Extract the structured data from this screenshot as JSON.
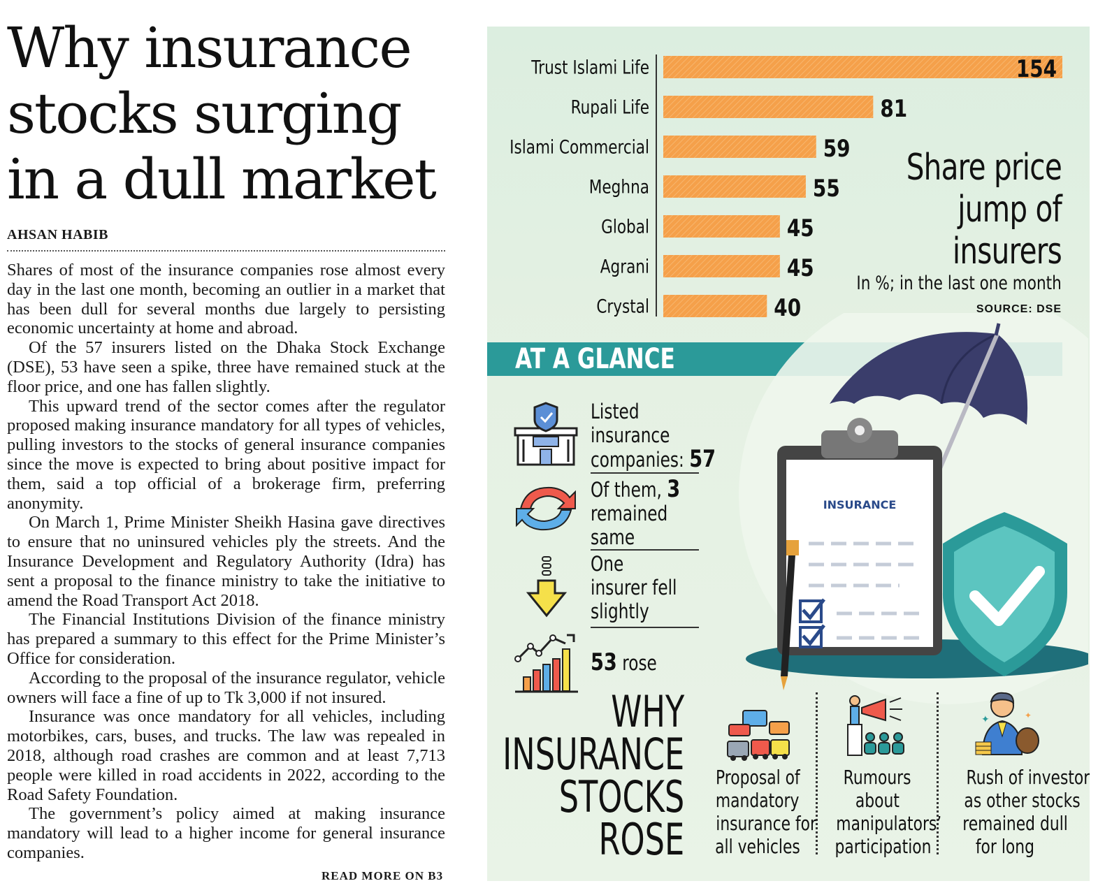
{
  "article": {
    "headline": "Why insurance stocks surging in a dull market",
    "byline": "AHSAN HABIB",
    "paragraphs": [
      "Shares of most of the insurance companies rose almost every day in the last one month, becoming an outlier in a market that has been dull for several months due largely to persisting economic uncertainty at home and abroad.",
      "Of the 57 insurers listed on the Dhaka Stock Exchange (DSE), 53 have seen a spike, three have remained stuck at the floor price, and one has fallen slightly.",
      "This upward trend of the sector comes after the regulator proposed making insurance mandatory for all types of vehicles, pulling investors to the stocks of general insurance companies since the move is expected to bring about positive impact for them, said a top official of a brokerage firm, preferring anonymity.",
      "On March 1, Prime Minister Sheikh Hasina gave directives to ensure that no uninsured vehicles ply the streets. And the Insurance Development and Regulatory Authority (Idra) has sent a proposal to the finance ministry to take the initiative to amend the Road Transport Act 2018.",
      "The Financial Institutions Division of the finance ministry has prepared a summary to this effect for the Prime Minister’s Office for consideration.",
      "According to the proposal of the insurance regulator, vehicle owners will face a fine of up to Tk 3,000 if not insured.",
      "Insurance was once mandatory for all vehicles, including motorbikes, cars, buses, and trucks. The law was repealed in 2018, although road crashes are common and at least 7,713 people were killed in road accidents in 2022, according to the Road Safety Foundation.",
      "The government’s policy aimed at making insurance mandatory will lead to a higher income for general insurance companies."
    ],
    "read_more": "READ MORE ON B3"
  },
  "chart_data": {
    "type": "bar",
    "orientation": "horizontal",
    "title": "Share price jump of insurers",
    "subtitle": "In %; in the last one month",
    "source": "SOURCE: DSE",
    "categories": [
      "Trust Islami Life",
      "Rupali Life",
      "Islami Commercial",
      "Meghna",
      "Global",
      "Agrani",
      "Crystal"
    ],
    "values": [
      154,
      81,
      59,
      55,
      45,
      45,
      40
    ],
    "xlim": [
      0,
      154
    ],
    "bar_color": "#f5a04a",
    "grid": false
  },
  "glance": {
    "title": "AT A GLANCE",
    "stats": [
      {
        "lines": [
          "Listed",
          "insurance"
        ],
        "last": "companies:",
        "value": "57",
        "icon": "insurance-building-icon"
      },
      {
        "first": "Of them,",
        "value": "3",
        "lines": [
          "remained",
          "same"
        ],
        "icon": "refresh-arrows-icon"
      },
      {
        "lines": [
          "One",
          "insurer fell",
          "slightly"
        ],
        "icon": "down-arrow-icon"
      },
      {
        "value": "53",
        "label": "rose",
        "icon": "growth-chart-icon"
      }
    ],
    "clipboard_label": "INSURANCE"
  },
  "why": {
    "title_lines": [
      "WHY",
      "INSURANCE",
      "STOCKS",
      "ROSE"
    ],
    "reasons": [
      {
        "lines": [
          "Proposal of",
          "mandatory",
          "insurance for",
          "all vehicles"
        ],
        "icon": "traffic-vehicles-icon"
      },
      {
        "lines": [
          "Rumours",
          "about",
          "manipulators’",
          "participation"
        ],
        "icon": "megaphone-crowd-icon"
      },
      {
        "lines": [
          "Rush of investors",
          "as other stocks",
          "remained dull",
          "for long"
        ],
        "icon": "investor-moneybag-icon"
      }
    ]
  },
  "colors": {
    "teal": "#2b9a99",
    "orange": "#f5a04a",
    "panel": "#e3f0e2"
  }
}
